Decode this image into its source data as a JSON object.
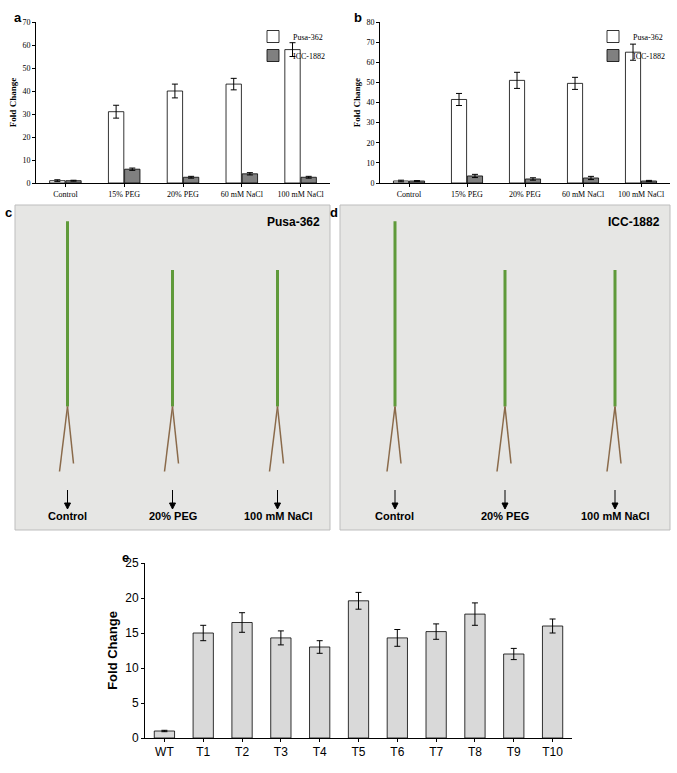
{
  "chart_data": [
    {
      "panel_label": "a",
      "type": "bar",
      "categories": [
        "Control",
        "15% PEG",
        "20% PEG",
        "60 mM NaCl",
        "100 mM NaCl"
      ],
      "series": [
        {
          "name": "Pusa-362",
          "color": "#ffffff",
          "values": [
            1,
            31,
            40,
            43,
            58
          ],
          "errors": [
            0.4,
            2.8,
            3,
            2.5,
            3
          ]
        },
        {
          "name": "ICC-1882",
          "color": "#808080",
          "values": [
            1,
            6,
            2.5,
            4,
            2.5
          ],
          "errors": [
            0.2,
            0.5,
            0.4,
            0.5,
            0.4
          ]
        }
      ],
      "y_label": "Fold Change",
      "ylim": [
        0,
        70
      ],
      "yticks": [
        0,
        10,
        20,
        30,
        40,
        50,
        60,
        70
      ],
      "legend": "upper right"
    },
    {
      "panel_label": "b",
      "type": "bar",
      "categories": [
        "Control",
        "15% PEG",
        "20% PEG",
        "60 mM NaCl",
        "100 mM NaCl"
      ],
      "series": [
        {
          "name": "Pusa-362",
          "color": "#ffffff",
          "values": [
            1,
            41.5,
            51,
            49.5,
            65
          ],
          "errors": [
            0.4,
            3,
            4,
            3,
            4
          ]
        },
        {
          "name": "ICC-1882",
          "color": "#808080",
          "values": [
            1,
            3.5,
            2,
            2.5,
            1
          ],
          "errors": [
            0.2,
            0.8,
            0.6,
            0.8,
            0.3
          ]
        }
      ],
      "y_label": "Fold Change",
      "ylim": [
        0,
        80
      ],
      "yticks": [
        0,
        10,
        20,
        30,
        40,
        50,
        60,
        70,
        80
      ],
      "legend": "upper right"
    },
    {
      "panel_label": "e",
      "type": "bar",
      "categories": [
        "WT",
        "T1",
        "T2",
        "T3",
        "T4",
        "T5",
        "T6",
        "T7",
        "T8",
        "T9",
        "T10"
      ],
      "values": [
        1,
        15,
        16.5,
        14.3,
        13,
        19.6,
        14.3,
        15.2,
        17.7,
        12,
        16
      ],
      "errors": [
        0.1,
        1.1,
        1.4,
        1.0,
        0.9,
        1.2,
        1.2,
        1.1,
        1.6,
        0.8,
        1.0
      ],
      "color": "#d9d9d9",
      "y_label": "Fold Change",
      "ylim": [
        0,
        25
      ],
      "yticks": [
        0,
        5,
        10,
        15,
        20,
        25
      ]
    }
  ],
  "photos": [
    {
      "panel_label": "c",
      "title": "Pusa-362",
      "labels": [
        "Control",
        "20% PEG",
        "100 mM NaCl"
      ]
    },
    {
      "panel_label": "d",
      "title": "ICC-1882",
      "labels": [
        "Control",
        "20% PEG",
        "100 mM NaCl"
      ]
    }
  ]
}
